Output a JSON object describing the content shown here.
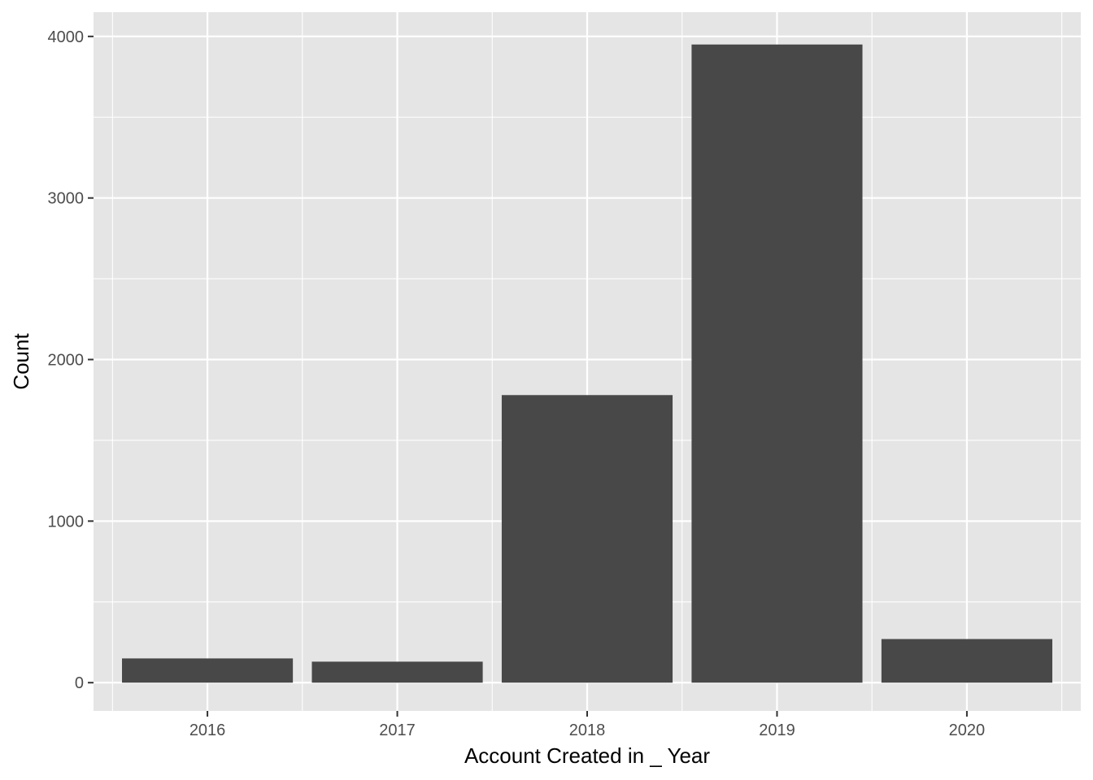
{
  "chart_data": {
    "type": "bar",
    "title": "",
    "xlabel": "Account Created in _ Year",
    "ylabel": "Count",
    "categories": [
      "2016",
      "2017",
      "2018",
      "2019",
      "2020"
    ],
    "values": [
      150,
      130,
      1780,
      3950,
      270
    ],
    "ylim": [
      -175,
      4150
    ],
    "yticks": [
      0,
      1000,
      2000,
      3000,
      4000
    ],
    "ytick_labels": [
      "0",
      "1000",
      "2000",
      "3000",
      "4000"
    ],
    "grid": true,
    "legend": "none",
    "colors": {
      "panel_background": "#e5e5e5",
      "grid_line": "#ffffff",
      "bar_fill": "#484848",
      "tick_label": "#4d4d4d",
      "tick_mark": "#333333",
      "axis_title": "#000000"
    }
  }
}
